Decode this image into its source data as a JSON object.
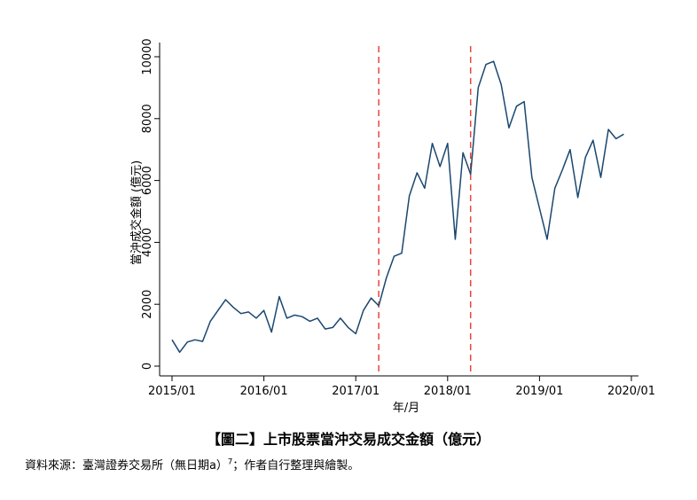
{
  "chart_data": {
    "type": "line",
    "ylabel": "當沖成交金額 (億元)",
    "xlabel": "年/月",
    "xlim": [
      "2015/01",
      "2020/01"
    ],
    "ylim": [
      0,
      10000
    ],
    "x_ticks": [
      "2015/01",
      "2016/01",
      "2017/01",
      "2018/01",
      "2019/01",
      "2020/01"
    ],
    "y_ticks": [
      "0",
      "2000",
      "4000",
      "6000",
      "8000",
      "10000"
    ],
    "grid": false,
    "vertical_reference_lines": [
      "2017/04",
      "2018/04"
    ],
    "line_color": "#1a476f",
    "reference_line_color": "#e8453c",
    "series": [
      {
        "x": [
          "2015/01",
          "2015/02",
          "2015/03",
          "2015/04",
          "2015/05",
          "2015/06",
          "2015/07",
          "2015/08",
          "2015/09",
          "2015/10",
          "2015/11",
          "2015/12",
          "2016/01",
          "2016/02",
          "2016/03",
          "2016/04",
          "2016/05",
          "2016/06",
          "2016/07",
          "2016/08",
          "2016/09",
          "2016/10",
          "2016/11",
          "2016/12",
          "2017/01",
          "2017/02",
          "2017/03",
          "2017/04",
          "2017/05",
          "2017/06",
          "2017/07",
          "2017/08",
          "2017/09",
          "2017/10",
          "2017/11",
          "2017/12",
          "2018/01",
          "2018/02",
          "2018/03",
          "2018/04",
          "2018/05",
          "2018/06",
          "2018/07",
          "2018/08",
          "2018/09",
          "2018/10",
          "2018/11",
          "2018/12",
          "2019/01",
          "2019/02",
          "2019/03",
          "2019/04",
          "2019/05",
          "2019/06",
          "2019/07",
          "2019/08",
          "2019/09",
          "2019/10",
          "2019/11",
          "2019/12"
        ],
        "values": [
          850,
          450,
          780,
          850,
          800,
          1450,
          1800,
          2150,
          1900,
          1700,
          1750,
          1550,
          1800,
          1100,
          2250,
          1550,
          1650,
          1600,
          1450,
          1550,
          1200,
          1250,
          1550,
          1250,
          1050,
          1800,
          2200,
          1950,
          2850,
          3550,
          3650,
          5500,
          6250,
          5750,
          7200,
          6450,
          7200,
          4100,
          6900,
          6200,
          9000,
          9750,
          9850,
          9100,
          7700,
          8400,
          8550,
          6100,
          5100,
          4100,
          5750,
          6350,
          7000,
          5450,
          6750,
          7300,
          6100,
          7650,
          7350,
          7500
        ]
      }
    ]
  },
  "caption": {
    "text": "【圖二】上市股票當沖交易成交金額（億元）"
  },
  "source": {
    "text_before": "資料來源：臺灣證券交易所（無日期a）",
    "superscript": "7",
    "text_after": "；作者自行整理與繪製。"
  }
}
